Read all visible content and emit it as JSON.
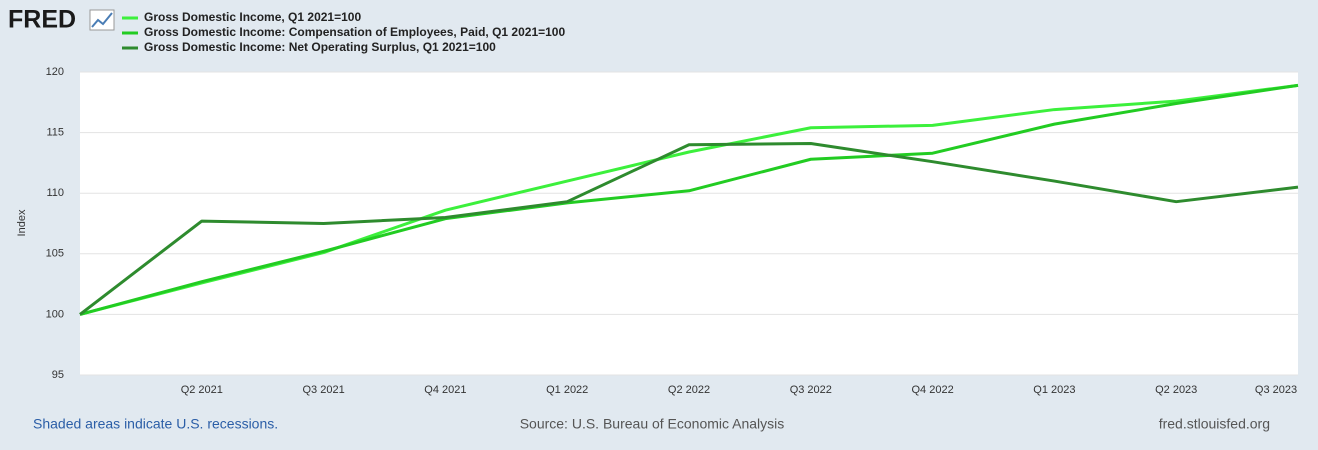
{
  "logo": "FRED",
  "chart_data": {
    "type": "line",
    "y_label": "Index",
    "categories": [
      null,
      "Q2 2021",
      "Q3 2021",
      "Q4 2021",
      "Q1 2022",
      "Q2 2022",
      "Q3 2022",
      "Q4 2022",
      "Q1 2023",
      "Q2 2023",
      "Q3 2023"
    ],
    "series": [
      {
        "name": "Gross Domestic Income, Q1 2021=100",
        "color": "#3cf03c",
        "values": [
          100,
          102.6,
          105.1,
          108.6,
          111.0,
          113.4,
          115.4,
          115.6,
          116.9,
          117.6,
          118.9
        ]
      },
      {
        "name": "Gross Domestic Income: Compensation of Employees, Paid, Q1 2021=100",
        "color": "#22cc22",
        "values": [
          100,
          102.7,
          105.2,
          107.9,
          109.2,
          110.2,
          112.8,
          113.3,
          115.7,
          117.4,
          118.9
        ]
      },
      {
        "name": "Gross Domestic Income: Net Operating Surplus, Q1 2021=100",
        "color": "#2e8b2e",
        "values": [
          100,
          107.7,
          107.5,
          108.0,
          109.3,
          114.0,
          114.1,
          112.6,
          111.0,
          109.3,
          110.5
        ]
      }
    ],
    "ylim": [
      95,
      120
    ],
    "yticks": [
      95,
      100,
      105,
      110,
      115,
      120
    ],
    "grid": true,
    "note": "Shaded areas indicate U.S. recessions.",
    "source": "Source: U.S. Bureau of Economic Analysis",
    "url": "fred.stlouisfed.org"
  }
}
